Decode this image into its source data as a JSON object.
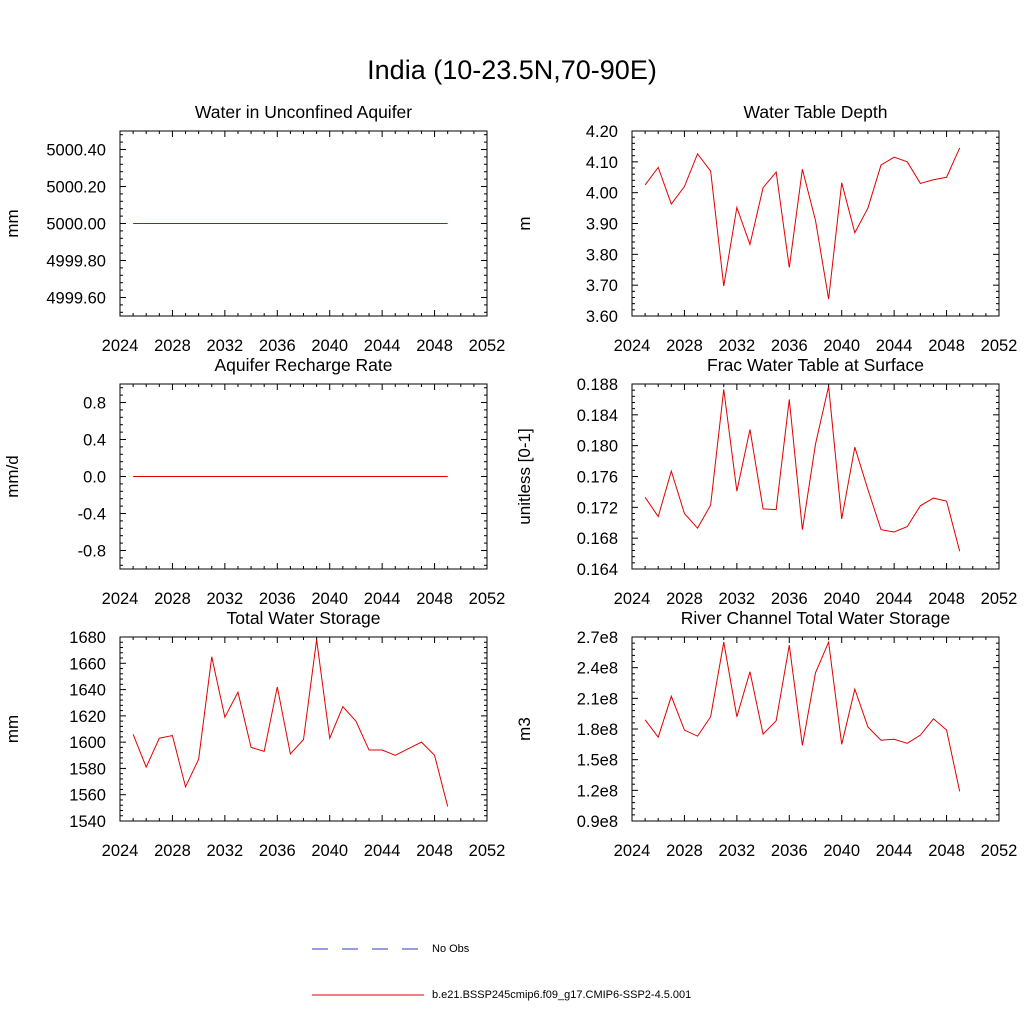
{
  "title": "India (10-23.5N,70-90E)",
  "legend": [
    {
      "label": "No Obs",
      "color": "#2a3ebf",
      "dash": true
    },
    {
      "label": "b.e21.BSSP245cmip6.f09_g17.CMIP6-SSP2-4.5.001",
      "color": "#e00000",
      "dash": false
    }
  ],
  "chart_data": [
    {
      "type": "line",
      "title": "Water in Unconfined Aquifer",
      "ylabel": "mm",
      "xlim": [
        2024,
        2052
      ],
      "ylim": [
        4999.5,
        5000.5
      ],
      "xticks": [
        "2024",
        "2028",
        "2032",
        "2036",
        "2040",
        "2044",
        "2048",
        "2052"
      ],
      "yticks": [
        {
          "v": 4999.6,
          "label": "4999.60"
        },
        {
          "v": 4999.8,
          "label": "4999.80"
        },
        {
          "v": 5000.0,
          "label": "5000.00"
        },
        {
          "v": 5000.2,
          "label": "5000.20"
        },
        {
          "v": 5000.4,
          "label": "5000.40"
        }
      ],
      "x": [
        2025,
        2026,
        2027,
        2028,
        2029,
        2030,
        2031,
        2032,
        2033,
        2034,
        2035,
        2036,
        2037,
        2038,
        2039,
        2040,
        2041,
        2042,
        2043,
        2044,
        2045,
        2046,
        2047,
        2048,
        2049
      ],
      "series": [
        {
          "color": "#e00000",
          "values": [
            5000,
            5000,
            5000,
            5000,
            5000,
            5000,
            5000,
            5000,
            5000,
            5000,
            5000,
            5000,
            5000,
            5000,
            5000,
            5000,
            5000,
            5000,
            5000,
            5000,
            5000,
            5000,
            5000,
            5000,
            5000
          ]
        }
      ]
    },
    {
      "type": "line",
      "title": "Water Table Depth",
      "ylabel": "m",
      "xlim": [
        2024,
        2052
      ],
      "ylim": [
        3.6,
        4.2
      ],
      "xticks": [
        "2024",
        "2028",
        "2032",
        "2036",
        "2040",
        "2044",
        "2048",
        "2052"
      ],
      "yticks": [
        {
          "v": 3.6,
          "label": "3.60"
        },
        {
          "v": 3.7,
          "label": "3.70"
        },
        {
          "v": 3.8,
          "label": "3.80"
        },
        {
          "v": 3.9,
          "label": "3.90"
        },
        {
          "v": 4.0,
          "label": "4.00"
        },
        {
          "v": 4.1,
          "label": "4.10"
        },
        {
          "v": 4.2,
          "label": "4.20"
        }
      ],
      "x": [
        2025,
        2026,
        2027,
        2028,
        2029,
        2030,
        2031,
        2032,
        2033,
        2034,
        2035,
        2036,
        2037,
        2038,
        2039,
        2040,
        2041,
        2042,
        2043,
        2044,
        2045,
        2046,
        2047,
        2048,
        2049
      ],
      "series": [
        {
          "color": "#e00000",
          "values": [
            4.025,
            4.082,
            3.963,
            4.02,
            4.126,
            4.07,
            3.697,
            3.952,
            3.832,
            4.016,
            4.067,
            3.757,
            4.076,
            3.91,
            3.655,
            4.032,
            3.87,
            3.95,
            4.09,
            4.115,
            4.1,
            4.03,
            4.042,
            4.05,
            4.145
          ]
        }
      ]
    },
    {
      "type": "line",
      "title": "Aquifer Recharge Rate",
      "ylabel": "mm/d",
      "xlim": [
        2024,
        2052
      ],
      "ylim": [
        -1.0,
        1.0
      ],
      "xticks": [
        "2024",
        "2028",
        "2032",
        "2036",
        "2040",
        "2044",
        "2048",
        "2052"
      ],
      "yticks": [
        {
          "v": -0.8,
          "label": "-0.8"
        },
        {
          "v": -0.4,
          "label": "-0.4"
        },
        {
          "v": 0.0,
          "label": "0.0"
        },
        {
          "v": 0.4,
          "label": "0.4"
        },
        {
          "v": 0.8,
          "label": "0.8"
        }
      ],
      "x": [
        2025,
        2026,
        2027,
        2028,
        2029,
        2030,
        2031,
        2032,
        2033,
        2034,
        2035,
        2036,
        2037,
        2038,
        2039,
        2040,
        2041,
        2042,
        2043,
        2044,
        2045,
        2046,
        2047,
        2048,
        2049
      ],
      "series": [
        {
          "color": "#e00000",
          "values": [
            0,
            0,
            0,
            0,
            0,
            0,
            0,
            0,
            0,
            0,
            0,
            0,
            0,
            0,
            0,
            0,
            0,
            0,
            0,
            0,
            0,
            0,
            0,
            0,
            0
          ]
        }
      ]
    },
    {
      "type": "line",
      "title": "Frac Water Table at Surface",
      "ylabel": "unitless [0-1]",
      "xlim": [
        2024,
        2052
      ],
      "ylim": [
        0.164,
        0.188
      ],
      "xticks": [
        "2024",
        "2028",
        "2032",
        "2036",
        "2040",
        "2044",
        "2048",
        "2052"
      ],
      "yticks": [
        {
          "v": 0.164,
          "label": "0.164"
        },
        {
          "v": 0.168,
          "label": "0.168"
        },
        {
          "v": 0.172,
          "label": "0.172"
        },
        {
          "v": 0.176,
          "label": "0.176"
        },
        {
          "v": 0.18,
          "label": "0.180"
        },
        {
          "v": 0.184,
          "label": "0.184"
        },
        {
          "v": 0.188,
          "label": "0.188"
        }
      ],
      "x": [
        2025,
        2026,
        2027,
        2028,
        2029,
        2030,
        2031,
        2032,
        2033,
        2034,
        2035,
        2036,
        2037,
        2038,
        2039,
        2040,
        2041,
        2042,
        2043,
        2044,
        2045,
        2046,
        2047,
        2048,
        2049
      ],
      "series": [
        {
          "color": "#e00000",
          "values": [
            0.1733,
            0.1708,
            0.1767,
            0.1712,
            0.1693,
            0.1723,
            0.1873,
            0.1741,
            0.1821,
            0.1718,
            0.1717,
            0.186,
            0.1691,
            0.1802,
            0.1877,
            0.1705,
            0.1798,
            0.1743,
            0.1691,
            0.1688,
            0.1695,
            0.1722,
            0.1732,
            0.1728,
            0.1663
          ]
        }
      ]
    },
    {
      "type": "line",
      "title": "Total Water Storage",
      "ylabel": "mm",
      "xlim": [
        2024,
        2052
      ],
      "ylim": [
        1540,
        1680
      ],
      "xticks": [
        "2024",
        "2028",
        "2032",
        "2036",
        "2040",
        "2044",
        "2048",
        "2052"
      ],
      "yticks": [
        {
          "v": 1540,
          "label": "1540"
        },
        {
          "v": 1560,
          "label": "1560"
        },
        {
          "v": 1580,
          "label": "1580"
        },
        {
          "v": 1600,
          "label": "1600"
        },
        {
          "v": 1620,
          "label": "1620"
        },
        {
          "v": 1640,
          "label": "1640"
        },
        {
          "v": 1660,
          "label": "1660"
        },
        {
          "v": 1680,
          "label": "1680"
        }
      ],
      "x": [
        2025,
        2026,
        2027,
        2028,
        2029,
        2030,
        2031,
        2032,
        2033,
        2034,
        2035,
        2036,
        2037,
        2038,
        2039,
        2040,
        2041,
        2042,
        2043,
        2044,
        2045,
        2046,
        2047,
        2048,
        2049
      ],
      "series": [
        {
          "color": "#e00000",
          "values": [
            1606,
            1581,
            1603,
            1605,
            1566,
            1587,
            1665,
            1619,
            1638,
            1596,
            1593,
            1642,
            1591,
            1602,
            1678,
            1603,
            1627,
            1616,
            1594,
            1594,
            1590,
            1595,
            1600,
            1590,
            1551
          ]
        }
      ]
    },
    {
      "type": "line",
      "title": "River Channel Total Water Storage",
      "ylabel": "m3",
      "xlim": [
        2024,
        2052
      ],
      "ylim": [
        90000000.0,
        270000000.0
      ],
      "xticks": [
        "2024",
        "2028",
        "2032",
        "2036",
        "2040",
        "2044",
        "2048",
        "2052"
      ],
      "yticks": [
        {
          "v": 90000000.0,
          "label": "0.9e8"
        },
        {
          "v": 120000000.0,
          "label": "1.2e8"
        },
        {
          "v": 150000000.0,
          "label": "1.5e8"
        },
        {
          "v": 180000000.0,
          "label": "1.8e8"
        },
        {
          "v": 210000000.0,
          "label": "2.1e8"
        },
        {
          "v": 240000000.0,
          "label": "2.4e8"
        },
        {
          "v": 270000000.0,
          "label": "2.7e8"
        }
      ],
      "x": [
        2025,
        2026,
        2027,
        2028,
        2029,
        2030,
        2031,
        2032,
        2033,
        2034,
        2035,
        2036,
        2037,
        2038,
        2039,
        2040,
        2041,
        2042,
        2043,
        2044,
        2045,
        2046,
        2047,
        2048,
        2049
      ],
      "series": [
        {
          "color": "#e00000",
          "values": [
            189000000.0,
            172000000.0,
            212000000.0,
            179000000.0,
            173000000.0,
            192000000.0,
            265000000.0,
            192000000.0,
            236000000.0,
            175000000.0,
            188000000.0,
            262000000.0,
            164000000.0,
            235000000.0,
            265000000.0,
            165000000.0,
            219000000.0,
            182000000.0,
            169000000.0,
            170000000.0,
            166000000.0,
            174000000.0,
            190000000.0,
            179000000.0,
            119000000.0
          ]
        }
      ]
    }
  ]
}
